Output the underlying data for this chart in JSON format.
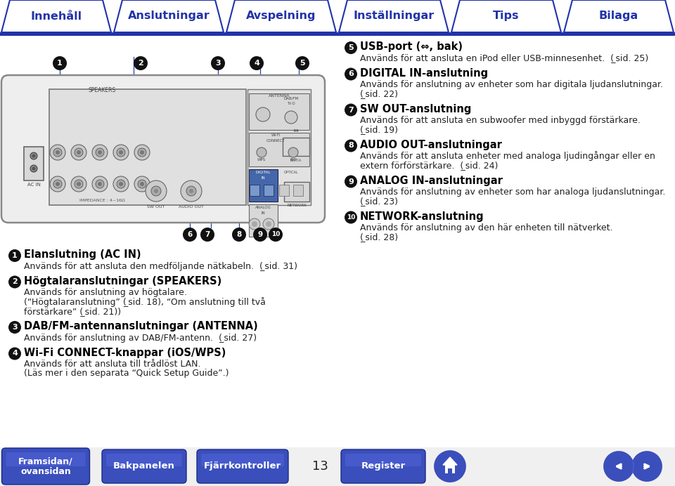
{
  "bg_color": "#f0f0f0",
  "nav_bg_color": "#ffffff",
  "nav_border_color": "#2233aa",
  "nav_tabs": [
    "Innehåll",
    "Anslutningar",
    "Avspelning",
    "Inställningar",
    "Tips",
    "Bilaga"
  ],
  "nav_bar_blue": "#2233aa",
  "bottom_btn_color": "#3a4fbb",
  "page_number": "13",
  "items_left": [
    {
      "num": "1",
      "title": "Elanslutning (AC IN)",
      "lines": [
        "Används för att ansluta den medföljande nätkabeln.  ( ̲sid. 31)"
      ]
    },
    {
      "num": "2",
      "title": "Högtalaranslutningar (SPEAKERS)",
      "lines": [
        "Används för anslutning av högtalare.",
        "(“Högtalaranslutning” ( ̲sid. 18), “Om anslutning till två",
        "förstärkare” ( ̲sid. 21))"
      ]
    },
    {
      "num": "3",
      "title": "DAB/FM-antennanslutningar (ANTENNA)",
      "lines": [
        "Används för anslutning av DAB/FM-antenn.  ( ̲sid. 27)"
      ]
    },
    {
      "num": "4",
      "title": "Wi-Fi CONNECT-knappar (iOS/WPS)",
      "lines": [
        "Används för att ansluta till trådlöst LAN.",
        "(Läs mer i den separata “Quick Setup Guide”.)"
      ]
    }
  ],
  "items_right": [
    {
      "num": "5",
      "title": "USB-port (⇔, bak)",
      "lines": [
        "Används för att ansluta en iPod eller USB-minnesenhet.  ( ̲sid. 25)"
      ]
    },
    {
      "num": "6",
      "title": "DIGITAL IN-anslutning",
      "lines": [
        "Används för anslutning av enheter som har digitala ljudanslutningar.",
        "( ̲sid. 22)"
      ]
    },
    {
      "num": "7",
      "title": "SW OUT-anslutning",
      "lines": [
        "Används för att ansluta en subwoofer med inbyggd förstärkare.",
        "( ̲sid. 19)"
      ]
    },
    {
      "num": "8",
      "title": "AUDIO OUT-anslutningar",
      "lines": [
        "Används för att ansluta enheter med analoga ljudingångar eller en",
        "extern förförstärkare.  ( ̲sid. 24)"
      ]
    },
    {
      "num": "9",
      "title": "ANALOG IN-anslutningar",
      "lines": [
        "Används för anslutning av enheter som har analoga ljudanslutningar.",
        "( ̲sid. 23)"
      ]
    },
    {
      "num": "10",
      "title": "NETWORK-anslutning",
      "lines": [
        "Används för anslutning av den här enheten till nätverket.",
        "( ̲sid. 28)"
      ]
    }
  ]
}
